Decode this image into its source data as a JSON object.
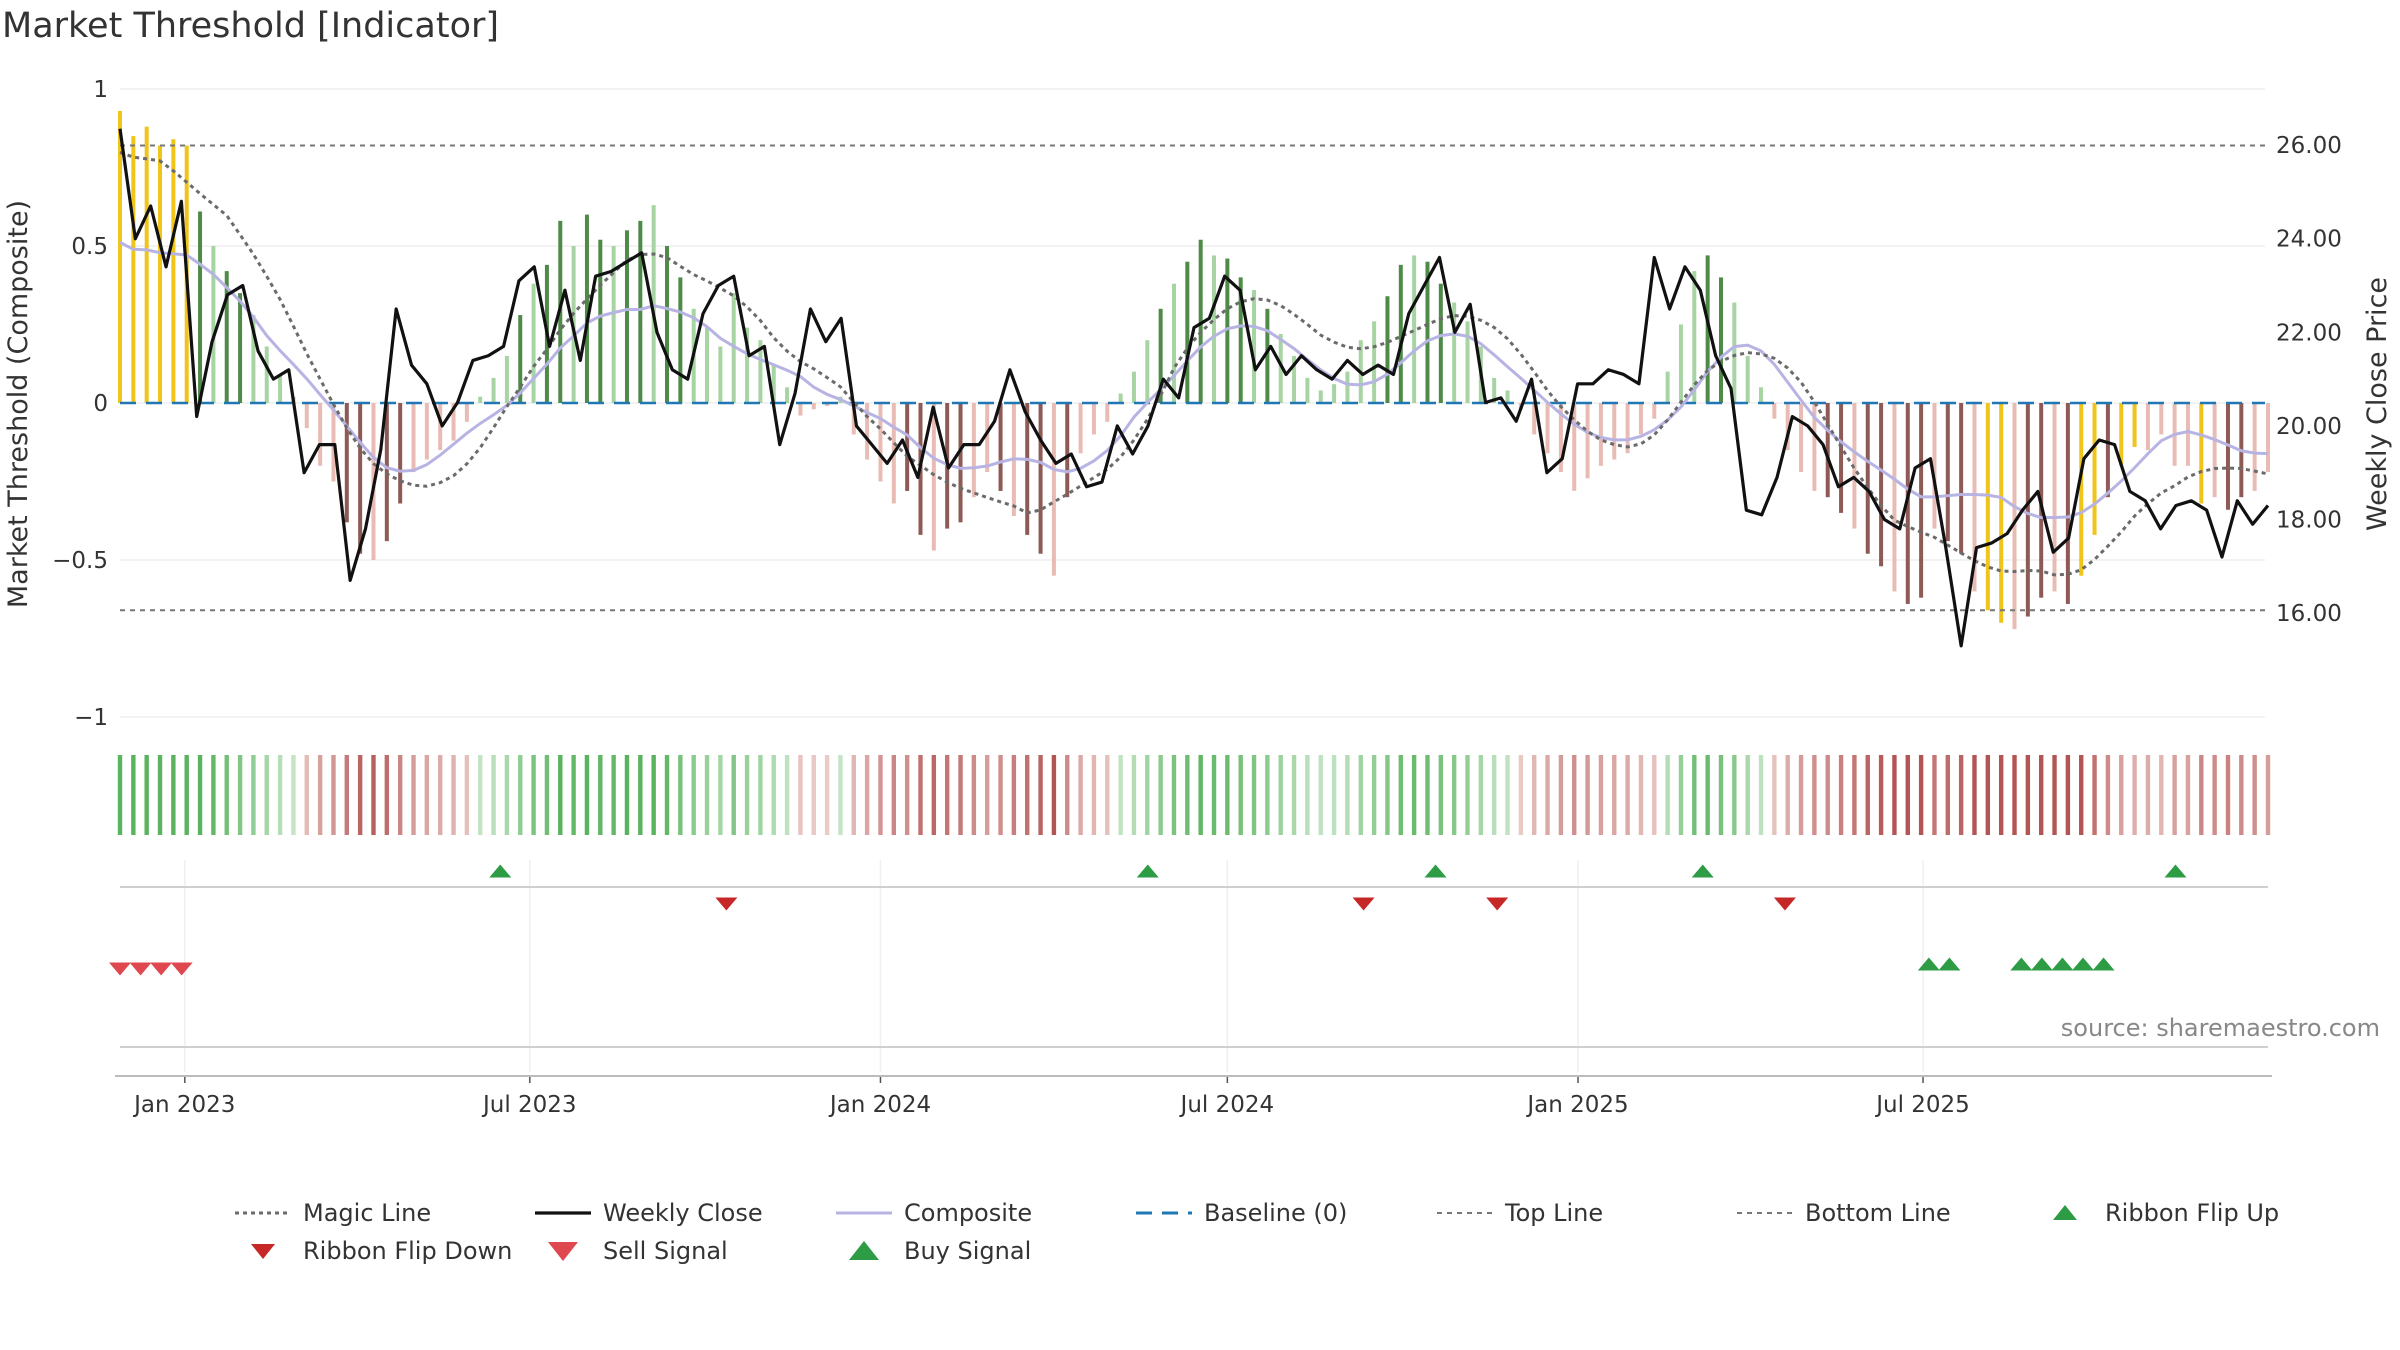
{
  "title": "Market Threshold [Indicator]",
  "source": "source: sharemaestro.com",
  "colors": {
    "weekly_close": "#111111",
    "magic_line": "#6b6b6b",
    "composite": "#b7b4e4",
    "baseline": "#1f77b4",
    "threshold_line": "#777777",
    "positive_bar_strong": "#4f8a48",
    "positive_bar_weak": "#a7d4a2",
    "negative_bar_strong": "#8e5a55",
    "negative_bar_weak": "#e8bcb4",
    "extreme_bar": "#f0c419",
    "ribbon_flip_up": "#2e9b45",
    "ribbon_flip_down": "#c62828",
    "sell_signal": "#e04850",
    "buy_signal": "#2e9b45"
  },
  "legend": [
    {
      "key": "magic",
      "label": "Magic Line"
    },
    {
      "key": "close",
      "label": "Weekly Close"
    },
    {
      "key": "composite",
      "label": "Composite"
    },
    {
      "key": "baseline",
      "label": "Baseline (0)"
    },
    {
      "key": "top",
      "label": "Top Line"
    },
    {
      "key": "bottom",
      "label": "Bottom Line"
    },
    {
      "key": "flipup",
      "label": "Ribbon Flip Up"
    },
    {
      "key": "flipdown",
      "label": "Ribbon Flip Down"
    },
    {
      "key": "sell",
      "label": "Sell Signal"
    },
    {
      "key": "buy",
      "label": "Buy Signal"
    }
  ],
  "chart_data": {
    "type": "line",
    "title": "Market Threshold [Indicator]",
    "ylabel": "Market Threshold (Composite)",
    "y2label": "Weekly Close Price",
    "ylim": [
      -1,
      1
    ],
    "y2lim": [
      13.78,
      27.2
    ],
    "yticks": [
      "1",
      "0.5",
      "0",
      "−0.5",
      "−1"
    ],
    "y2ticks": [
      "26.00",
      "24.00",
      "22.00",
      "20.00",
      "18.00",
      "16.00"
    ],
    "x_ticks": [
      {
        "label": "Jan 2023",
        "date": "2023-01-01"
      },
      {
        "label": "Jul 2023",
        "date": "2023-07-01"
      },
      {
        "label": "Jan 2024",
        "date": "2024-01-01"
      },
      {
        "label": "Jul 2024",
        "date": "2024-07-01"
      },
      {
        "label": "Jan 2025",
        "date": "2025-01-01"
      },
      {
        "label": "Jul 2025",
        "date": "2025-07-01"
      }
    ],
    "start_date": "2022-11-28",
    "week_step": 1,
    "top_line": 0.82,
    "bottom_line": -0.66,
    "baseline": 0,
    "composite_bars": [
      0.93,
      0.85,
      0.88,
      0.82,
      0.84,
      0.82,
      0.61,
      0.5,
      0.42,
      0.35,
      0.28,
      0.18,
      0.09,
      0.02,
      -0.08,
      -0.2,
      -0.25,
      -0.38,
      -0.48,
      -0.5,
      -0.44,
      -0.32,
      -0.22,
      -0.18,
      -0.15,
      -0.12,
      -0.06,
      0.02,
      0.08,
      0.15,
      0.28,
      0.38,
      0.44,
      0.58,
      0.5,
      0.6,
      0.52,
      0.5,
      0.55,
      0.58,
      0.63,
      0.5,
      0.4,
      0.3,
      0.24,
      0.18,
      0.35,
      0.24,
      0.2,
      0.12,
      0.05,
      -0.04,
      -0.02,
      -0.01,
      0.02,
      -0.1,
      -0.18,
      -0.25,
      -0.32,
      -0.28,
      -0.42,
      -0.47,
      -0.4,
      -0.38,
      -0.3,
      -0.22,
      -0.28,
      -0.36,
      -0.42,
      -0.48,
      -0.55,
      -0.3,
      -0.16,
      -0.1,
      -0.06,
      0.03,
      0.1,
      0.2,
      0.3,
      0.38,
      0.45,
      0.52,
      0.47,
      0.46,
      0.4,
      0.36,
      0.3,
      0.22,
      0.15,
      0.08,
      0.04,
      0.06,
      0.1,
      0.2,
      0.26,
      0.34,
      0.44,
      0.47,
      0.45,
      0.38,
      0.32,
      0.26,
      0.18,
      0.08,
      0.04,
      -0.02,
      -0.1,
      -0.16,
      -0.22,
      -0.28,
      -0.24,
      -0.2,
      -0.18,
      -0.16,
      -0.1,
      -0.05,
      0.1,
      0.25,
      0.42,
      0.47,
      0.4,
      0.32,
      0.15,
      0.05,
      -0.05,
      -0.15,
      -0.22,
      -0.28,
      -0.3,
      -0.35,
      -0.4,
      -0.48,
      -0.52,
      -0.6,
      -0.64,
      -0.62,
      -0.4,
      -0.44,
      -0.48,
      -0.6,
      -0.66,
      -0.7,
      -0.72,
      -0.68,
      -0.62,
      -0.6,
      -0.64,
      -0.55,
      -0.42,
      -0.3,
      -0.2,
      -0.14,
      -0.15,
      -0.1,
      -0.2,
      -0.2,
      -0.32,
      -0.3,
      -0.34,
      -0.3,
      -0.28,
      -0.22
    ],
    "extreme_bars": [
      0,
      1,
      2,
      3,
      4,
      5,
      140,
      141,
      147,
      148,
      150,
      151,
      156
    ],
    "weekly_close": [
      26.35,
      24.0,
      24.7,
      23.4,
      24.8,
      20.2,
      21.8,
      22.8,
      23.0,
      21.6,
      21.0,
      21.2,
      19.0,
      19.6,
      19.6,
      16.7,
      17.8,
      19.5,
      22.5,
      21.3,
      20.9,
      20.0,
      20.5,
      21.4,
      21.5,
      21.7,
      23.1,
      23.4,
      21.7,
      22.9,
      21.4,
      23.2,
      23.3,
      23.5,
      23.7,
      22.0,
      21.2,
      21.0,
      22.4,
      23.0,
      23.2,
      21.5,
      21.7,
      19.6,
      20.7,
      22.5,
      21.8,
      22.3,
      20.0,
      19.6,
      19.2,
      19.7,
      18.9,
      20.4,
      19.1,
      19.6,
      19.6,
      20.1,
      21.2,
      20.3,
      19.7,
      19.2,
      19.4,
      18.7,
      18.8,
      20.0,
      19.4,
      20.0,
      21.0,
      20.6,
      22.1,
      22.3,
      23.2,
      22.9,
      21.2,
      21.7,
      21.1,
      21.5,
      21.2,
      21.0,
      21.4,
      21.1,
      21.3,
      21.1,
      22.4,
      23.0,
      23.6,
      22.0,
      22.6,
      20.5,
      20.6,
      20.1,
      21.0,
      19.0,
      19.3,
      20.9,
      20.9,
      21.2,
      21.1,
      20.9,
      23.6,
      22.5,
      23.4,
      22.9,
      21.5,
      20.8,
      18.2,
      18.1,
      18.9,
      20.2,
      20.0,
      19.6,
      18.7,
      18.9,
      18.6,
      18.0,
      17.8,
      19.1,
      19.3,
      17.4,
      15.3,
      17.4,
      17.5,
      17.7,
      18.2,
      18.6,
      17.3,
      17.6,
      19.3,
      19.7,
      19.6,
      18.6,
      18.4,
      17.8,
      18.3,
      18.4,
      18.2,
      17.2,
      18.4,
      17.9,
      18.3
    ]
  },
  "signals": {
    "buy_indices": [
      37,
      100,
      128,
      154,
      200
    ],
    "sell_indices": [
      59,
      121,
      134,
      162
    ],
    "flip_down_indices": [
      0,
      2,
      4,
      6
    ],
    "flip_up_indices": [
      176,
      178,
      185,
      187,
      189,
      191,
      193
    ]
  }
}
